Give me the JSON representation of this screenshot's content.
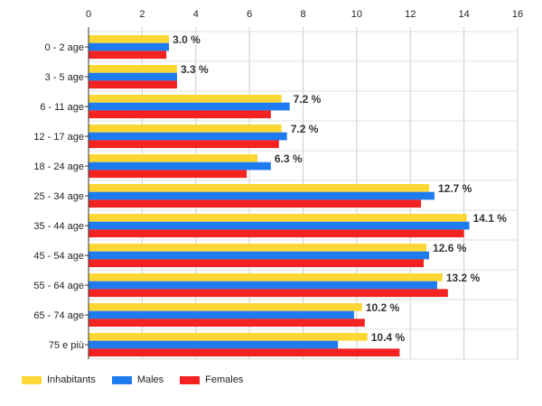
{
  "chart_data": {
    "type": "bar",
    "orientation": "horizontal",
    "categories": [
      "0 - 2 age",
      "3 - 5 age",
      "6 - 11 age",
      "12 - 17 age",
      "18 - 24 age",
      "25 - 34 age",
      "35 - 44 age",
      "45 - 54 age",
      "55 - 64 age",
      "65 - 74 age",
      "75 e più"
    ],
    "series": [
      {
        "name": "Inhabitants",
        "color": "#fdd835",
        "values": [
          3.0,
          3.3,
          7.2,
          7.2,
          6.3,
          12.7,
          14.1,
          12.6,
          13.2,
          10.2,
          10.4
        ]
      },
      {
        "name": "Males",
        "color": "#1e7bf0",
        "values": [
          3.0,
          3.3,
          7.5,
          7.4,
          6.8,
          12.9,
          14.2,
          12.7,
          13.0,
          9.9,
          9.3
        ]
      },
      {
        "name": "Females",
        "color": "#f52222",
        "values": [
          2.9,
          3.3,
          6.8,
          7.1,
          5.9,
          12.4,
          14.0,
          12.5,
          13.4,
          10.3,
          11.6
        ]
      }
    ],
    "data_labels": [
      "3.0 %",
      "3.3 %",
      "7.2 %",
      "7.2 %",
      "6.3 %",
      "12.7 %",
      "14.1 %",
      "12.6 %",
      "13.2 %",
      "10.2 %",
      "10.4 %"
    ],
    "xticks": [
      "0",
      "2",
      "4",
      "6",
      "8",
      "10",
      "12",
      "14",
      "16"
    ],
    "xlim": [
      0,
      16
    ],
    "grid": true,
    "legend_position": "bottom-left",
    "title": "",
    "xlabel": "",
    "ylabel": ""
  }
}
